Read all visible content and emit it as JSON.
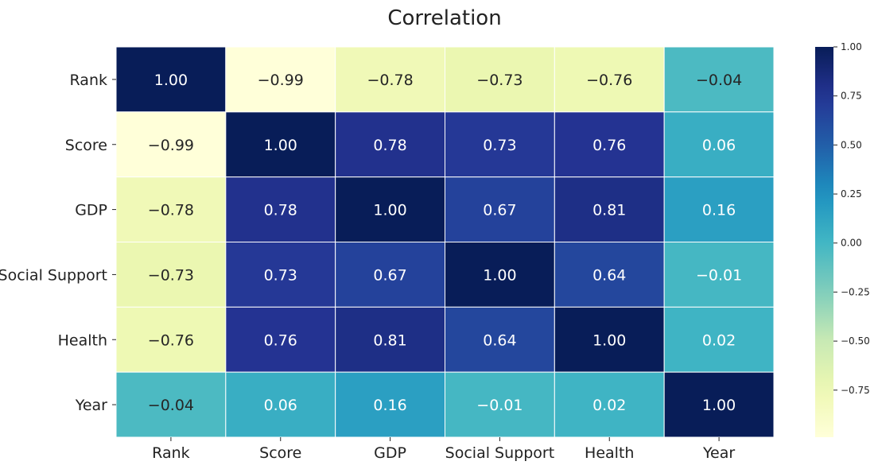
{
  "chart_data": {
    "type": "heatmap",
    "title": "Correlation",
    "xlabel": "",
    "ylabel": "",
    "x_categories": [
      "Rank",
      "Score",
      "GDP",
      "Social Support",
      "Health",
      "Year"
    ],
    "y_categories": [
      "Rank",
      "Score",
      "GDP",
      "Social Support",
      "Health",
      "Year"
    ],
    "values": [
      [
        1.0,
        -0.99,
        -0.78,
        -0.73,
        -0.76,
        -0.04
      ],
      [
        -0.99,
        1.0,
        0.78,
        0.73,
        0.76,
        0.06
      ],
      [
        -0.78,
        0.78,
        1.0,
        0.67,
        0.81,
        0.16
      ],
      [
        -0.73,
        0.73,
        0.67,
        1.0,
        0.64,
        -0.01
      ],
      [
        -0.76,
        0.76,
        0.81,
        0.64,
        1.0,
        0.02
      ],
      [
        -0.04,
        0.06,
        0.16,
        -0.01,
        0.02,
        1.0
      ]
    ],
    "annotation_format": "0.00",
    "colormap": "YlGnBu",
    "vmin": -0.99,
    "vmax": 1.0,
    "colorbar_ticks": [
      "1.00",
      "0.75",
      "0.50",
      "0.25",
      "0.00",
      "−0.25",
      "−0.50",
      "−0.75"
    ],
    "colorbar_tick_values": [
      1.0,
      0.75,
      0.5,
      0.25,
      0.0,
      -0.25,
      -0.5,
      -0.75
    ],
    "colorbar_position": "right",
    "grid": false
  }
}
